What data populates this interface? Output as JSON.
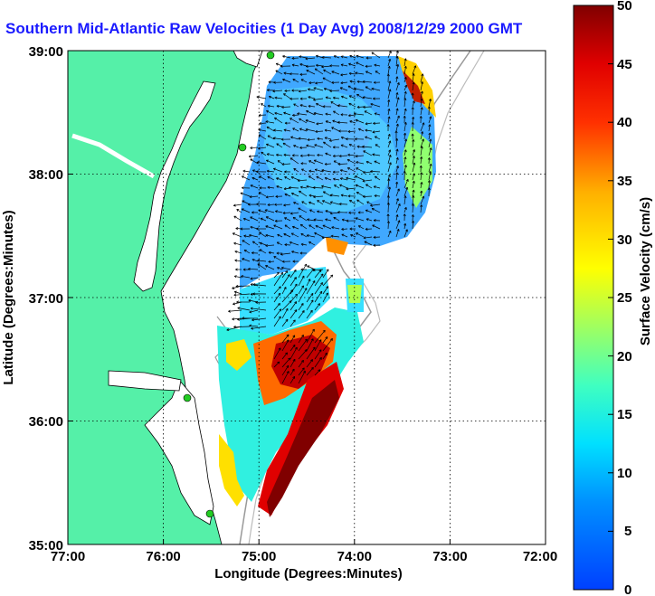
{
  "title": "Southern Mid-Atlantic Raw Velocities (1 Day Avg) 2008/12/29 2000 GMT",
  "map": {
    "xlabel": "Longitude (Degrees:Minutes)",
    "ylabel": "Latitude (Degrees:Minutes)",
    "lon_ticks": [
      "77:00",
      "76:00",
      "75:00",
      "74:00",
      "73:00",
      "72:00"
    ],
    "lat_ticks": [
      "39:00",
      "38:00",
      "37:00",
      "36:00",
      "35:00"
    ],
    "lon_range": [
      -77,
      -72
    ],
    "lat_range": [
      35,
      39
    ],
    "grid": true,
    "colors": {
      "land": "#55f0a8",
      "water": "#ffffff",
      "coast": "#000000",
      "bathymetry": "#999999",
      "station": "#22cc22"
    }
  },
  "colorbar": {
    "label": "Surface Velocity (cm/s)",
    "ticks": [
      "50",
      "45",
      "40",
      "35",
      "30",
      "25",
      "20",
      "15",
      "10",
      "5",
      "0"
    ],
    "range": [
      0,
      50
    ],
    "colormap": "jet"
  }
}
